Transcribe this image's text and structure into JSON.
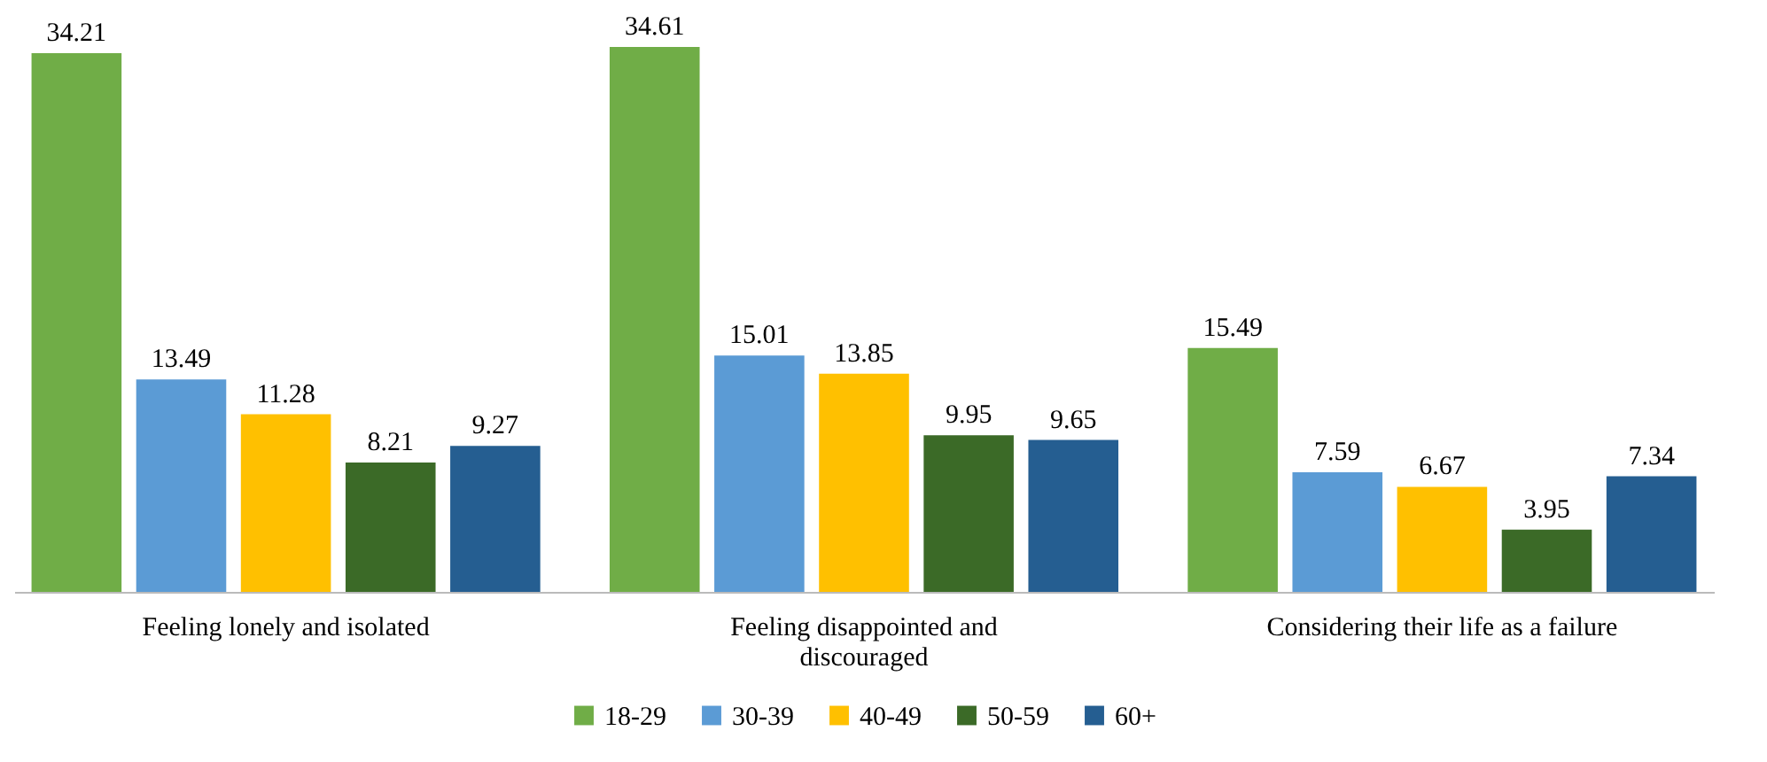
{
  "chart_data": {
    "type": "bar",
    "categories": [
      "Feeling lonely and isolated",
      "Feeling disappointed and discouraged",
      "Considering their life as a failure"
    ],
    "series": [
      {
        "name": "18-29",
        "color": "#70ad47",
        "values": [
          34.21,
          34.61,
          15.49
        ]
      },
      {
        "name": "30-39",
        "color": "#5b9bd5",
        "values": [
          13.49,
          15.01,
          7.59
        ]
      },
      {
        "name": "40-49",
        "color": "#ffc000",
        "values": [
          11.28,
          13.85,
          6.67
        ]
      },
      {
        "name": "50-59",
        "color": "#3b6a27",
        "values": [
          8.21,
          9.95,
          3.95
        ]
      },
      {
        "name": "60+",
        "color": "#255e91",
        "values": [
          9.27,
          9.65,
          7.34
        ]
      }
    ],
    "data_labels": true,
    "legend": "bottom",
    "grid": false
  }
}
